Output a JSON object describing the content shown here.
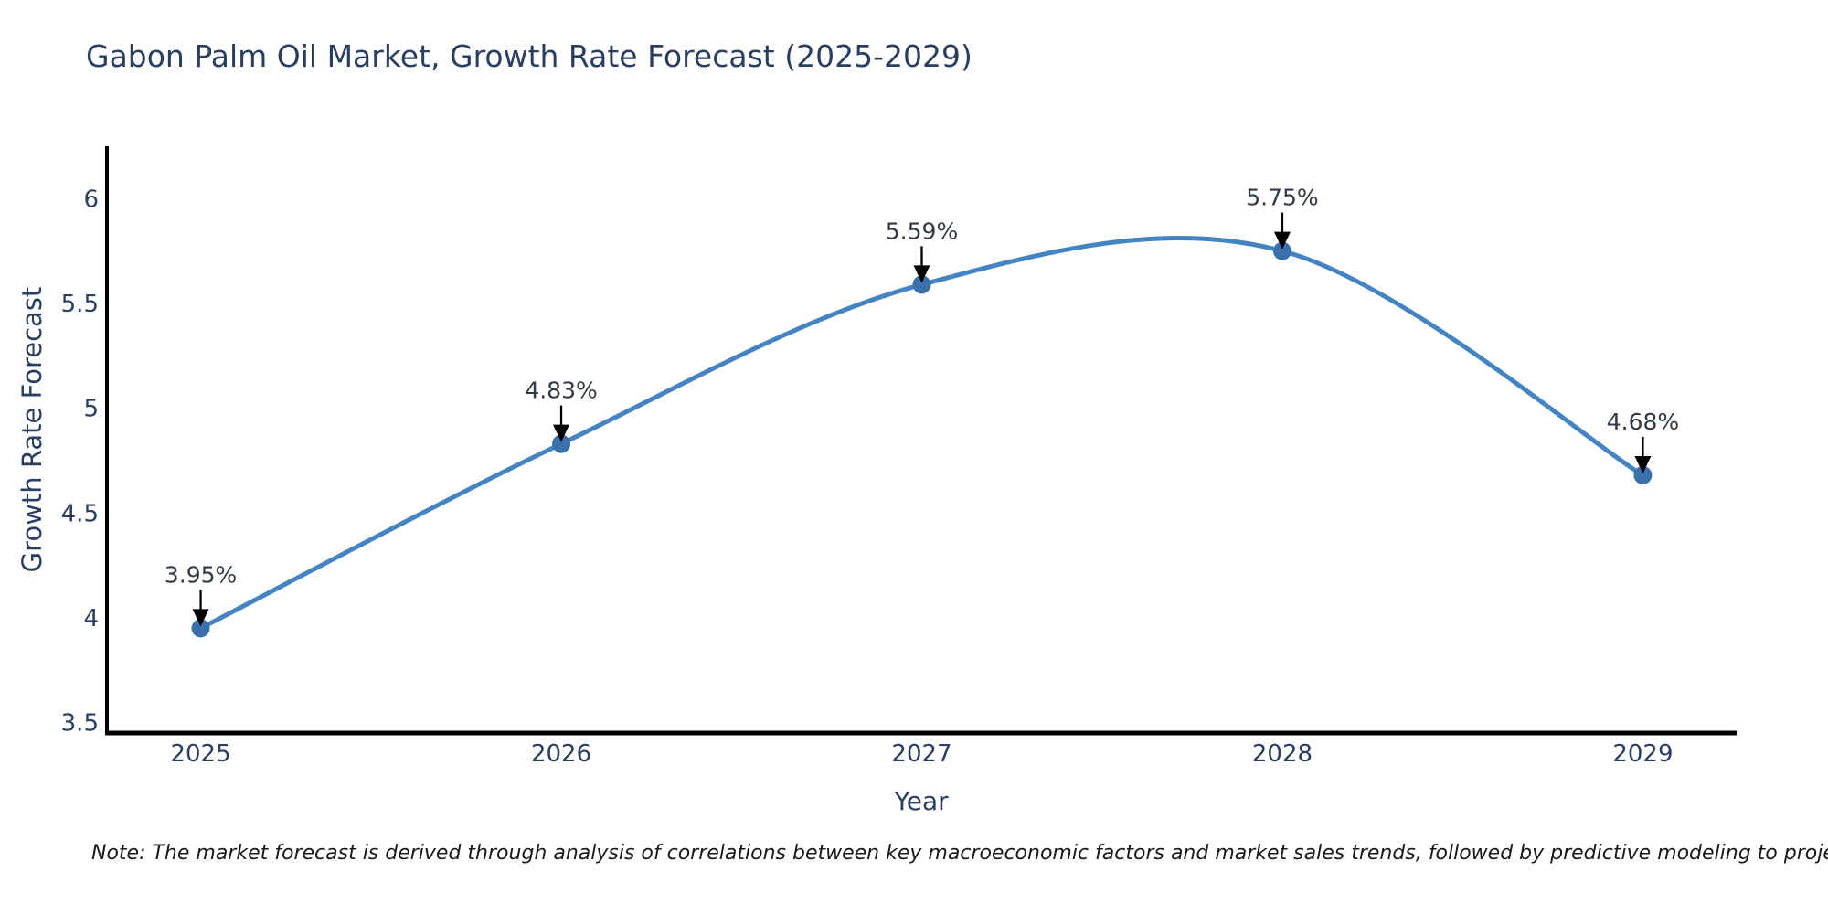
{
  "note": {
    "text": "Note: The market forecast is derived through analysis of correlations between key macroeconomic factors and market sales trends, followed by predictive modeling to project future sales"
  },
  "chart_data": {
    "type": "line",
    "title": "Gabon Palm Oil Market, Growth Rate Forecast (2025-2029)",
    "xlabel": "Year",
    "ylabel": "Growth Rate Forecast",
    "x": [
      2025,
      2026,
      2027,
      2028,
      2029
    ],
    "y": [
      3.95,
      4.83,
      5.59,
      5.75,
      4.68
    ],
    "point_labels": [
      "3.95%",
      "4.83%",
      "5.59%",
      "5.75%",
      "4.68%"
    ],
    "xtick_labels": [
      "2025",
      "2026",
      "2027",
      "2028",
      "2029"
    ],
    "yticks": [
      3.5,
      4,
      4.5,
      5,
      5.5,
      6
    ],
    "ytick_labels": [
      "3.5",
      "4",
      "4.5",
      "5",
      "5.5",
      "6"
    ],
    "xlim": [
      2024.74,
      2029.26
    ],
    "ylim": [
      3.45,
      6.25
    ],
    "grid": false,
    "legend": false,
    "line_shape": "spline",
    "colors": {
      "line": "#4484c2",
      "marker": "#3a71ad",
      "axis": "#000000",
      "tick_text": "#2a3f5f",
      "annotation_text": "#333a44",
      "arrow": "#000000"
    }
  }
}
